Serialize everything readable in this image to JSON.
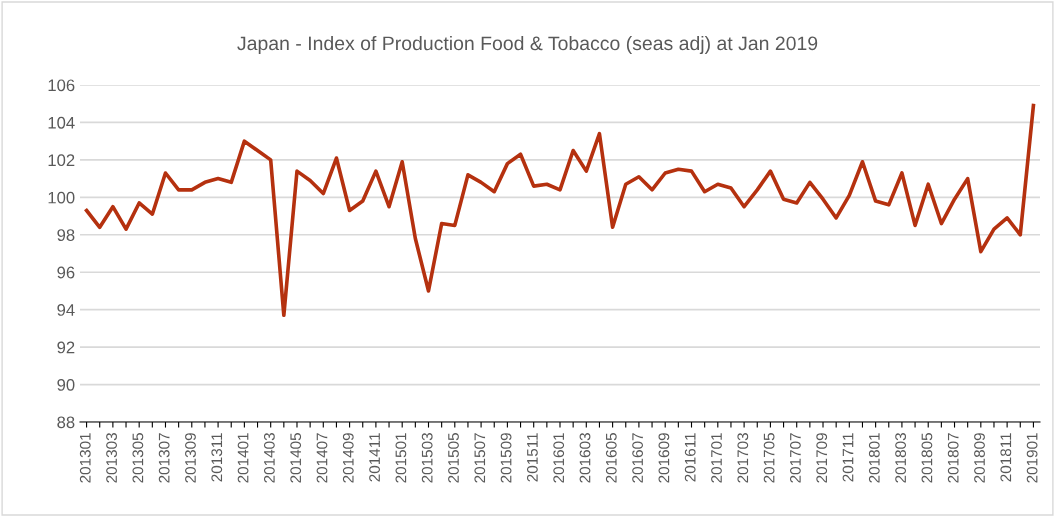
{
  "chart_data": {
    "type": "line",
    "title": "Japan - Index of Production Food & Tobacco (seas adj) at Jan 2019",
    "categories": [
      "201301",
      null,
      "201303",
      null,
      "201305",
      null,
      "201307",
      null,
      "201309",
      null,
      "201311",
      null,
      "201401",
      null,
      "201403",
      null,
      "201405",
      null,
      "201407",
      null,
      "201409",
      null,
      "201411",
      null,
      "201501",
      null,
      "201503",
      null,
      "201505",
      null,
      "201507",
      null,
      "201509",
      null,
      "201511",
      null,
      "201601",
      null,
      "201603",
      null,
      "201605",
      null,
      "201607",
      null,
      "201609",
      null,
      "201611",
      null,
      "201701",
      null,
      "201703",
      null,
      "201705",
      null,
      "201707",
      null,
      "201709",
      null,
      "201711",
      null,
      "201801",
      null,
      "201803",
      null,
      "201805",
      null,
      "201807",
      null,
      "201809",
      null,
      "201811",
      null,
      "201901"
    ],
    "series": [
      {
        "color": "#b5310f",
        "values": [
          99.3,
          98.4,
          99.5,
          98.3,
          99.7,
          99.1,
          101.3,
          100.4,
          100.4,
          100.8,
          101.0,
          100.8,
          103.0,
          102.5,
          102.0,
          93.7,
          101.4,
          100.9,
          100.2,
          102.1,
          99.3,
          99.8,
          101.4,
          99.5,
          101.9,
          97.8,
          95.0,
          98.6,
          98.5,
          101.2,
          100.8,
          100.3,
          101.8,
          102.3,
          100.6,
          100.7,
          100.4,
          102.5,
          101.4,
          103.4,
          98.4,
          100.7,
          101.1,
          100.4,
          101.3,
          101.5,
          101.4,
          100.3,
          100.7,
          100.5,
          99.5,
          100.4,
          101.4,
          99.9,
          99.7,
          100.8,
          99.9,
          98.9,
          100.1,
          101.9,
          99.8,
          99.6,
          101.3,
          98.5,
          100.7,
          98.6,
          99.9,
          101.0,
          97.1,
          98.3,
          98.9,
          98.0,
          104.9
        ]
      }
    ],
    "ylim": [
      88,
      106
    ],
    "yticks": [
      88,
      90,
      92,
      94,
      96,
      98,
      100,
      102,
      104,
      106
    ],
    "grid": "y",
    "marker": "none",
    "line_style": "solid"
  }
}
